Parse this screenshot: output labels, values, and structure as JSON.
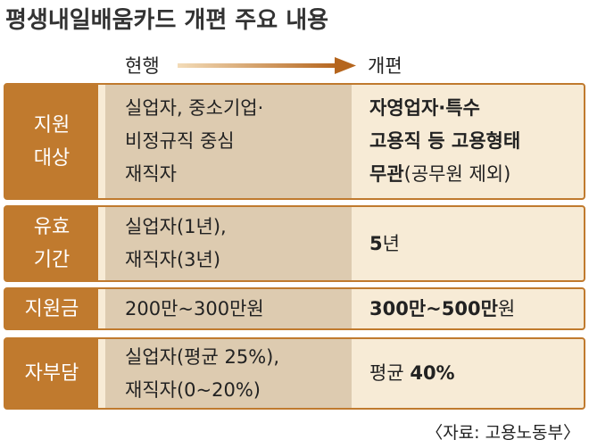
{
  "title": "평생내일배움카드 개편 주요 내용",
  "header": {
    "current": "현행",
    "new": "개편"
  },
  "rows": [
    {
      "label": [
        "지원",
        "대상"
      ],
      "current": [
        "실업자, 중소기업·",
        "비정규직 중심",
        "재직자"
      ],
      "new": [
        [
          {
            "text": "자영업자·특수",
            "bold": true
          }
        ],
        [
          {
            "text": "고용직 등 고용형태",
            "bold": true
          }
        ],
        [
          {
            "text": "무관",
            "bold": true
          },
          {
            "text": "(공무원 제외)",
            "bold": false
          }
        ]
      ]
    },
    {
      "label": [
        "유효",
        "기간"
      ],
      "current": [
        "실업자(1년),",
        "재직자(3년)"
      ],
      "new": [
        [
          {
            "text": "5",
            "bold": true
          },
          {
            "text": "년",
            "bold": false
          }
        ]
      ]
    },
    {
      "label": [
        "지원금"
      ],
      "current": [
        "200만~300만원"
      ],
      "new": [
        [
          {
            "text": "300만~500만",
            "bold": true
          },
          {
            "text": "원",
            "bold": false
          }
        ]
      ]
    },
    {
      "label": [
        "자부담"
      ],
      "current": [
        "실업자(평균 25%),",
        "재직자(0~20%)"
      ],
      "new": [
        [
          {
            "text": "평균 ",
            "bold": false
          },
          {
            "text": "40%",
            "bold": true
          }
        ]
      ]
    }
  ],
  "source": "〈자료: 고용노동부〉"
}
